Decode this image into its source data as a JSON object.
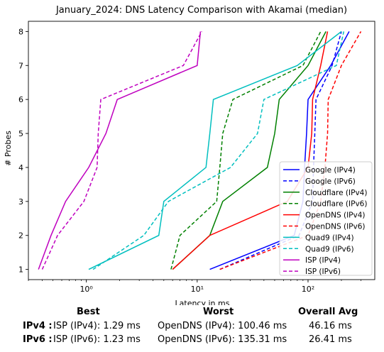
{
  "chart_data": {
    "type": "line",
    "title": "January_2024: DNS Latency Comparison with Akamai (median)",
    "xlabel": "Latency in ms",
    "ylabel": "# Probes",
    "x_scale": "log",
    "xlim": [
      0.3,
      400
    ],
    "ylim": [
      0.7,
      8.3
    ],
    "x_ticks": [
      {
        "value": 1,
        "label": "10⁰"
      },
      {
        "value": 10,
        "label": "10¹"
      },
      {
        "value": 100,
        "label": "10²"
      }
    ],
    "y_ticks": [
      1,
      2,
      3,
      4,
      5,
      6,
      7,
      8
    ],
    "grid": false,
    "legend_position": "lower-right",
    "series": [
      {
        "name": "Google (IPv4)",
        "color": "#0000ff",
        "dash": "solid",
        "points": [
          [
            13,
            1
          ],
          [
            75,
            2
          ],
          [
            90,
            3
          ],
          [
            93,
            4
          ],
          [
            97,
            5
          ],
          [
            100,
            6
          ],
          [
            160,
            7
          ],
          [
            235,
            8
          ]
        ]
      },
      {
        "name": "Google (IPv6)",
        "color": "#0000ff",
        "dash": "dashed",
        "points": [
          [
            16,
            1
          ],
          [
            83,
            2
          ],
          [
            110,
            3
          ],
          [
            112,
            4
          ],
          [
            115,
            5
          ],
          [
            118,
            6
          ],
          [
            165,
            7
          ],
          [
            200,
            8
          ]
        ]
      },
      {
        "name": "Cloudflare (IPv4)",
        "color": "#008000",
        "dash": "solid",
        "points": [
          [
            6,
            1
          ],
          [
            13,
            2
          ],
          [
            17,
            3
          ],
          [
            43,
            4
          ],
          [
            50,
            5
          ],
          [
            55,
            6
          ],
          [
            100,
            7
          ],
          [
            145,
            8
          ]
        ]
      },
      {
        "name": "Cloudflare (IPv6)",
        "color": "#008000",
        "dash": "dashed",
        "points": [
          [
            5.8,
            1
          ],
          [
            7,
            2
          ],
          [
            15,
            3
          ],
          [
            16,
            4
          ],
          [
            17,
            5
          ],
          [
            21,
            6
          ],
          [
            90,
            7
          ],
          [
            130,
            8
          ]
        ]
      },
      {
        "name": "OpenDNS (IPv4)",
        "color": "#ff0000",
        "dash": "solid",
        "points": [
          [
            6,
            1
          ],
          [
            13,
            2
          ],
          [
            65,
            3
          ],
          [
            100,
            4
          ],
          [
            108,
            5
          ],
          [
            110,
            6
          ],
          [
            130,
            7
          ],
          [
            150,
            8
          ]
        ]
      },
      {
        "name": "OpenDNS (IPv6)",
        "color": "#ff0000",
        "dash": "dashed",
        "points": [
          [
            16,
            1
          ],
          [
            100,
            2
          ],
          [
            130,
            3
          ],
          [
            142,
            4
          ],
          [
            150,
            5
          ],
          [
            152,
            6
          ],
          [
            200,
            7
          ],
          [
            300,
            8
          ]
        ]
      },
      {
        "name": "Quad9 (IPv4)",
        "color": "#00bfbf",
        "dash": "solid",
        "points": [
          [
            1.05,
            1
          ],
          [
            4.5,
            2
          ],
          [
            5,
            3
          ],
          [
            12,
            4
          ],
          [
            13,
            5
          ],
          [
            14,
            6
          ],
          [
            80,
            7
          ],
          [
            200,
            8
          ]
        ]
      },
      {
        "name": "Quad9 (IPv6)",
        "color": "#00bfbf",
        "dash": "dashed",
        "points": [
          [
            1.15,
            1
          ],
          [
            3.3,
            2
          ],
          [
            5.5,
            3
          ],
          [
            20,
            4
          ],
          [
            35,
            5
          ],
          [
            40,
            6
          ],
          [
            180,
            7
          ],
          [
            210,
            8
          ]
        ]
      },
      {
        "name": "ISP (IPv4)",
        "color": "#bf00bf",
        "dash": "solid",
        "points": [
          [
            0.37,
            1
          ],
          [
            0.48,
            2
          ],
          [
            0.65,
            3
          ],
          [
            1.05,
            4
          ],
          [
            1.5,
            5
          ],
          [
            1.9,
            6
          ],
          [
            10,
            7
          ],
          [
            10.7,
            8
          ]
        ]
      },
      {
        "name": "ISP (IPv6)",
        "color": "#bf00bf",
        "dash": "dashed",
        "points": [
          [
            0.4,
            1
          ],
          [
            0.55,
            2
          ],
          [
            0.95,
            3
          ],
          [
            1.25,
            4
          ],
          [
            1.28,
            5
          ],
          [
            1.35,
            6
          ],
          [
            7.5,
            7
          ],
          [
            11,
            8
          ]
        ]
      }
    ]
  },
  "summary": {
    "headers": {
      "best": "Best",
      "worst": "Worst",
      "avg": "Overall Avg"
    },
    "rows": [
      {
        "label": "IPv4 :",
        "best": "ISP (IPv4): 1.29 ms",
        "worst": "OpenDNS (IPv4): 100.46 ms",
        "avg": "46.16 ms"
      },
      {
        "label": "IPv6 :",
        "best": "ISP (IPv6): 1.23 ms",
        "worst": "OpenDNS (IPv6): 135.31 ms",
        "avg": "26.41 ms"
      }
    ]
  }
}
